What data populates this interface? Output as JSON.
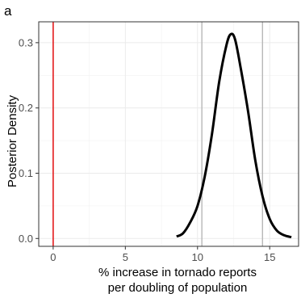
{
  "chart_data": {
    "type": "line",
    "panel_label": "a",
    "xlabel_line1": "% increase in tornado reports",
    "xlabel_line2": "per doubling of population",
    "ylabel": "Posterior Density",
    "xlim": [
      -1,
      17
    ],
    "ylim": [
      -0.012,
      0.332
    ],
    "x_ticks": [
      0,
      5,
      10,
      15
    ],
    "x_tick_labels": [
      "0",
      "5",
      "10",
      "15"
    ],
    "y_ticks": [
      0.0,
      0.1,
      0.2,
      0.3
    ],
    "y_tick_labels": [
      "0.0",
      "0.1",
      "0.2",
      "0.3"
    ],
    "grid": true,
    "series": [
      {
        "x": [
          8.55,
          9.0,
          9.5,
          10.0,
          10.5,
          11.0,
          11.5,
          12.0,
          12.3,
          12.6,
          13.0,
          13.5,
          14.0,
          14.5,
          15.0,
          15.5,
          16.0,
          16.5
        ],
        "y": [
          0.003,
          0.008,
          0.025,
          0.05,
          0.095,
          0.16,
          0.24,
          0.296,
          0.313,
          0.305,
          0.26,
          0.195,
          0.12,
          0.065,
          0.03,
          0.012,
          0.005,
          0.002
        ]
      }
    ],
    "reference_lines": [
      {
        "x": 0,
        "color": "#e31a1c"
      },
      {
        "x": 10.3,
        "color": "#b3b3b3"
      },
      {
        "x": 14.5,
        "color": "#b3b3b3"
      }
    ]
  }
}
